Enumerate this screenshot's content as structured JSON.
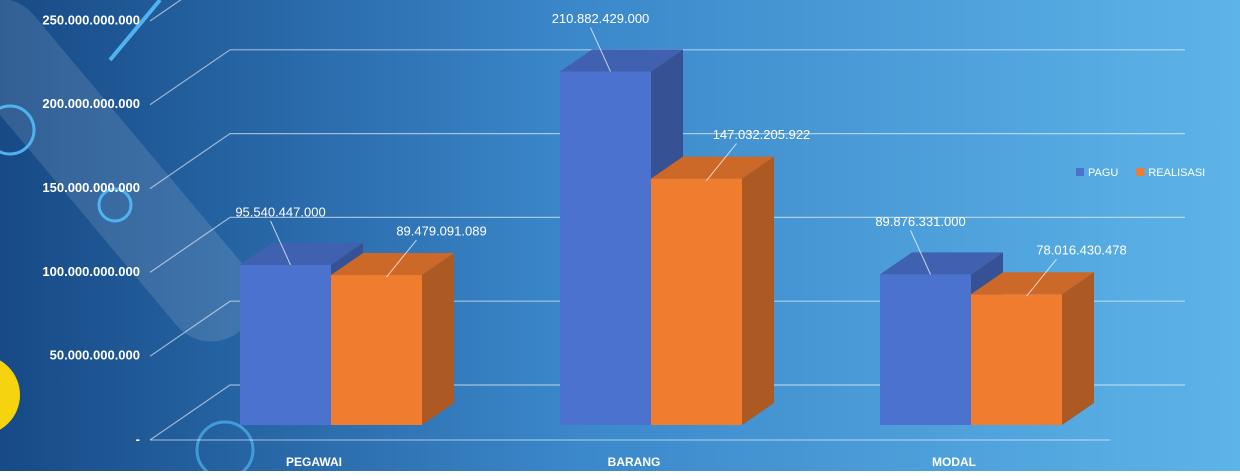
{
  "chart_data": {
    "type": "bar3d",
    "categories": [
      "PEGAWAI",
      "BARANG",
      "MODAL"
    ],
    "series": [
      {
        "name": "PAGU",
        "color": "#4b72cf",
        "values": [
          95540447000,
          210882429000,
          89876331000
        ],
        "value_labels": [
          "95.540.447.000",
          "210.882.429.000",
          "89.876.331.000"
        ]
      },
      {
        "name": "REALISASI",
        "color": "#f07c30",
        "values": [
          89479091089,
          147032205922,
          78016430478
        ],
        "value_labels": [
          "89.479.091.089",
          "147.032.205.922",
          "78.016.430.478"
        ]
      }
    ],
    "ylim": [
      0,
      250000000000
    ],
    "yticks": [
      {
        "value": 0,
        "label": "-"
      },
      {
        "value": 50000000000,
        "label": "50.000.000.000"
      },
      {
        "value": 100000000000,
        "label": "100.000.000.000"
      },
      {
        "value": 150000000000,
        "label": "150.000.000.000"
      },
      {
        "value": 200000000000,
        "label": "200.000.000.000"
      },
      {
        "value": 250000000000,
        "label": "250.000.000.000"
      }
    ],
    "grid": true,
    "legend": "right"
  }
}
